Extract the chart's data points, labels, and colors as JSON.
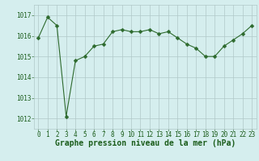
{
  "x": [
    0,
    1,
    2,
    3,
    4,
    5,
    6,
    7,
    8,
    9,
    10,
    11,
    12,
    13,
    14,
    15,
    16,
    17,
    18,
    19,
    20,
    21,
    22,
    23
  ],
  "y": [
    1015.9,
    1016.9,
    1016.5,
    1012.1,
    1014.8,
    1015.0,
    1015.5,
    1015.6,
    1016.2,
    1016.3,
    1016.2,
    1016.2,
    1016.3,
    1016.1,
    1016.2,
    1015.9,
    1015.6,
    1015.4,
    1015.0,
    1015.0,
    1015.5,
    1015.8,
    1016.1,
    1016.5
  ],
  "line_color": "#2d6a2d",
  "marker": "D",
  "marker_size": 2.5,
  "bg_color": "#d5eeee",
  "grid_color": "#b0c8c8",
  "xlabel": "Graphe pression niveau de la mer (hPa)",
  "xlabel_color": "#1a5c1a",
  "xlabel_fontsize": 7,
  "tick_color": "#1a5c1a",
  "tick_fontsize": 5.5,
  "ylim": [
    1011.5,
    1017.5
  ],
  "yticks": [
    1012,
    1013,
    1014,
    1015,
    1016,
    1017
  ],
  "xlim": [
    -0.5,
    23.5
  ],
  "fig_width": 3.2,
  "fig_height": 2.0,
  "dpi": 100
}
